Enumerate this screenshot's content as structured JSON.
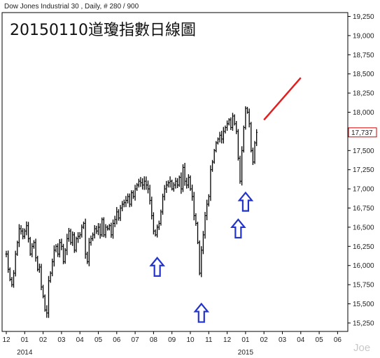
{
  "header": "Dow Jones Industrial 30 , Daily, # 280 / 900",
  "watermark": "Joe",
  "chart_data": {
    "type": "line",
    "style": "ohlc-bars",
    "title": "20150110道瓊指數日線圖",
    "x_tick_labels": [
      "12",
      "01",
      "02",
      "03",
      "04",
      "05",
      "06",
      "07",
      "08",
      "09",
      "10",
      "11",
      "12",
      "01",
      "02",
      "03",
      "04",
      "05",
      "06"
    ],
    "year_labels": [
      {
        "label": "2014",
        "at_tick": 1
      },
      {
        "label": "2015",
        "at_tick": 13
      }
    ],
    "y_ticks": [
      15250,
      15500,
      15750,
      16000,
      16250,
      16500,
      16750,
      17000,
      17250,
      17500,
      17750,
      18000,
      18250,
      18500,
      18750,
      19000,
      19250
    ],
    "y_tick_labels": [
      "15,250",
      "15,500",
      "15,750",
      "16,000",
      "16,250",
      "16,500",
      "16,750",
      "17,000",
      "17,250",
      "17,500",
      "17,750",
      "18,000",
      "18,250",
      "18,500",
      "18,750",
      "19,000",
      "19,250"
    ],
    "ylim": [
      15140,
      19300
    ],
    "xlim": [
      0,
      18.6
    ],
    "last_value": 17737,
    "last_value_label": "17,737",
    "colors": {
      "bars": "#000000",
      "trendline": "#e02020",
      "arrows": "#2233cc",
      "last_price_box": "#cc0000"
    },
    "series": [
      {
        "values": [
          [
            0.0,
            16150
          ],
          [
            0.1,
            15950
          ],
          [
            0.2,
            15820
          ],
          [
            0.3,
            15750
          ],
          [
            0.4,
            15900
          ],
          [
            0.5,
            16150
          ],
          [
            0.6,
            16300
          ],
          [
            0.7,
            16480
          ],
          [
            0.8,
            16450
          ],
          [
            0.9,
            16380
          ],
          [
            1.0,
            16450
          ],
          [
            1.1,
            16520
          ],
          [
            1.2,
            16350
          ],
          [
            1.3,
            16150
          ],
          [
            1.4,
            16250
          ],
          [
            1.5,
            16300
          ],
          [
            1.6,
            16100
          ],
          [
            1.7,
            15950
          ],
          [
            1.8,
            15980
          ],
          [
            1.9,
            15720
          ],
          [
            2.0,
            15600
          ],
          [
            2.1,
            15420
          ],
          [
            2.2,
            15380
          ],
          [
            2.3,
            15800
          ],
          [
            2.4,
            15900
          ],
          [
            2.5,
            16050
          ],
          [
            2.6,
            16200
          ],
          [
            2.7,
            16250
          ],
          [
            2.8,
            16150
          ],
          [
            2.9,
            16300
          ],
          [
            3.0,
            16250
          ],
          [
            3.1,
            16050
          ],
          [
            3.2,
            16200
          ],
          [
            3.3,
            16350
          ],
          [
            3.4,
            16450
          ],
          [
            3.5,
            16300
          ],
          [
            3.6,
            16400
          ],
          [
            3.7,
            16200
          ],
          [
            3.8,
            16350
          ],
          [
            3.9,
            16380
          ],
          [
            4.0,
            16400
          ],
          [
            4.1,
            16500
          ],
          [
            4.2,
            16550
          ],
          [
            4.3,
            16150
          ],
          [
            4.4,
            16050
          ],
          [
            4.5,
            16300
          ],
          [
            4.6,
            16350
          ],
          [
            4.7,
            16400
          ],
          [
            4.8,
            16480
          ],
          [
            4.9,
            16450
          ],
          [
            5.0,
            16500
          ],
          [
            5.1,
            16400
          ],
          [
            5.2,
            16600
          ],
          [
            5.3,
            16400
          ],
          [
            5.4,
            16500
          ],
          [
            5.5,
            16480
          ],
          [
            5.6,
            16520
          ],
          [
            5.7,
            16400
          ],
          [
            5.8,
            16550
          ],
          [
            5.9,
            16600
          ],
          [
            6.0,
            16700
          ],
          [
            6.1,
            16620
          ],
          [
            6.2,
            16750
          ],
          [
            6.3,
            16800
          ],
          [
            6.4,
            16820
          ],
          [
            6.5,
            16850
          ],
          [
            6.6,
            16900
          ],
          [
            6.7,
            16800
          ],
          [
            6.8,
            16950
          ],
          [
            6.9,
            16900
          ],
          [
            7.0,
            17000
          ],
          [
            7.1,
            17050
          ],
          [
            7.2,
            17100
          ],
          [
            7.3,
            17080
          ],
          [
            7.4,
            17050
          ],
          [
            7.5,
            17100
          ],
          [
            7.6,
            17050
          ],
          [
            7.7,
            17000
          ],
          [
            7.8,
            16850
          ],
          [
            7.9,
            16650
          ],
          [
            8.0,
            16450
          ],
          [
            8.1,
            16400
          ],
          [
            8.2,
            16500
          ],
          [
            8.3,
            16550
          ],
          [
            8.4,
            16700
          ],
          [
            8.5,
            16900
          ],
          [
            8.6,
            17000
          ],
          [
            8.7,
            17050
          ],
          [
            8.8,
            17080
          ],
          [
            8.9,
            17100
          ],
          [
            9.0,
            17000
          ],
          [
            9.1,
            17050
          ],
          [
            9.2,
            17100
          ],
          [
            9.3,
            17050
          ],
          [
            9.4,
            17150
          ],
          [
            9.5,
            17000
          ],
          [
            9.6,
            17280
          ],
          [
            9.7,
            17100
          ],
          [
            9.8,
            17050
          ],
          [
            9.9,
            17150
          ],
          [
            10.0,
            17000
          ],
          [
            10.1,
            16900
          ],
          [
            10.2,
            16650
          ],
          [
            10.3,
            16550
          ],
          [
            10.4,
            16300
          ],
          [
            10.5,
            15900
          ],
          [
            10.6,
            16200
          ],
          [
            10.7,
            16400
          ],
          [
            10.8,
            16650
          ],
          [
            10.9,
            16800
          ],
          [
            11.0,
            16900
          ],
          [
            11.1,
            17250
          ],
          [
            11.2,
            17350
          ],
          [
            11.3,
            17500
          ],
          [
            11.4,
            17600
          ],
          [
            11.5,
            17650
          ],
          [
            11.6,
            17700
          ],
          [
            11.7,
            17650
          ],
          [
            11.8,
            17750
          ],
          [
            11.9,
            17800
          ],
          [
            12.0,
            17850
          ],
          [
            12.1,
            17900
          ],
          [
            12.2,
            17800
          ],
          [
            12.3,
            17950
          ],
          [
            12.4,
            17850
          ],
          [
            12.5,
            17750
          ],
          [
            12.6,
            17400
          ],
          [
            12.7,
            17100
          ],
          [
            12.8,
            17500
          ],
          [
            12.9,
            17800
          ],
          [
            13.0,
            18050
          ],
          [
            13.1,
            18000
          ],
          [
            13.2,
            17850
          ],
          [
            13.3,
            17500
          ],
          [
            13.4,
            17350
          ],
          [
            13.5,
            17600
          ],
          [
            13.6,
            17737
          ]
        ]
      }
    ],
    "trendline": {
      "from": [
        14.0,
        17900
      ],
      "to": [
        16.0,
        18450
      ]
    },
    "arrows": [
      {
        "x": 8.2,
        "y": 16100,
        "direction": "up"
      },
      {
        "x": 10.6,
        "y": 15500,
        "direction": "up"
      },
      {
        "x": 12.6,
        "y": 16600,
        "direction": "up"
      },
      {
        "x": 13.0,
        "y": 16950,
        "direction": "up"
      }
    ]
  }
}
